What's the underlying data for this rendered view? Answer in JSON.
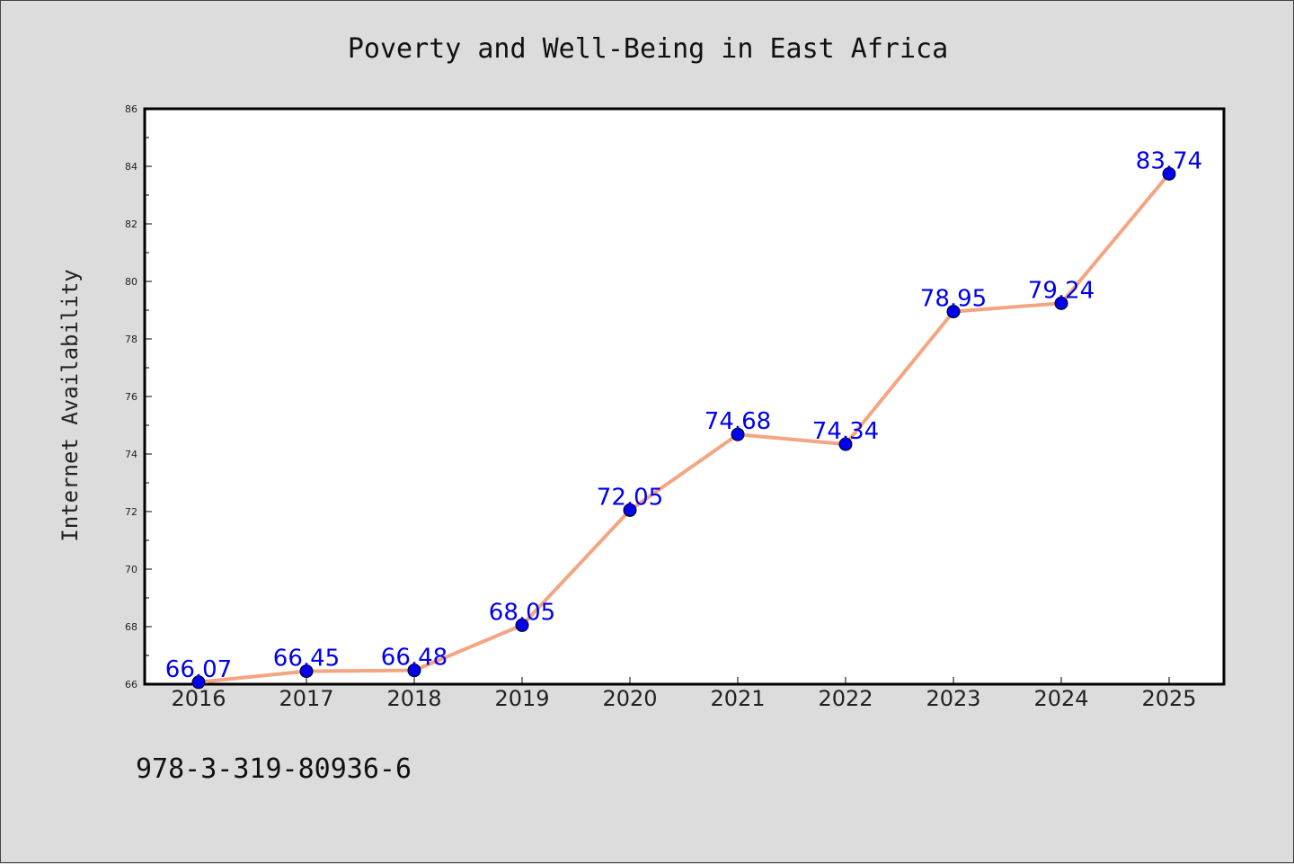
{
  "chart_data": {
    "type": "line",
    "title": "Poverty and Well-Being in East Africa",
    "xlabel": "",
    "ylabel": "Internet Availability",
    "categories": [
      "2016",
      "2017",
      "2018",
      "2019",
      "2020",
      "2021",
      "2022",
      "2023",
      "2024",
      "2025"
    ],
    "series": [
      {
        "values": [
          66.07,
          66.45,
          66.48,
          68.05,
          72.05,
          74.68,
          74.34,
          78.95,
          79.24,
          83.74
        ],
        "labels": [
          "66.07",
          "66.45",
          "66.48",
          "68.05",
          "72.05",
          "74.68",
          "74.34",
          "78.95",
          "79.24",
          "83.74"
        ],
        "line_color": "#f4a582",
        "marker_color": "#0000ee",
        "label_color": "#0000ee"
      }
    ],
    "ylim": [
      66,
      86
    ],
    "yticks": [
      "66",
      "68",
      "70",
      "72",
      "74",
      "76",
      "78",
      "80",
      "82",
      "84",
      "86"
    ],
    "grid": false,
    "legend": "none"
  },
  "footnote": "978-3-319-80936-6",
  "colors": {
    "background": "#dcdcdc",
    "plot_background": "#ffffff",
    "axis": "#000000"
  }
}
